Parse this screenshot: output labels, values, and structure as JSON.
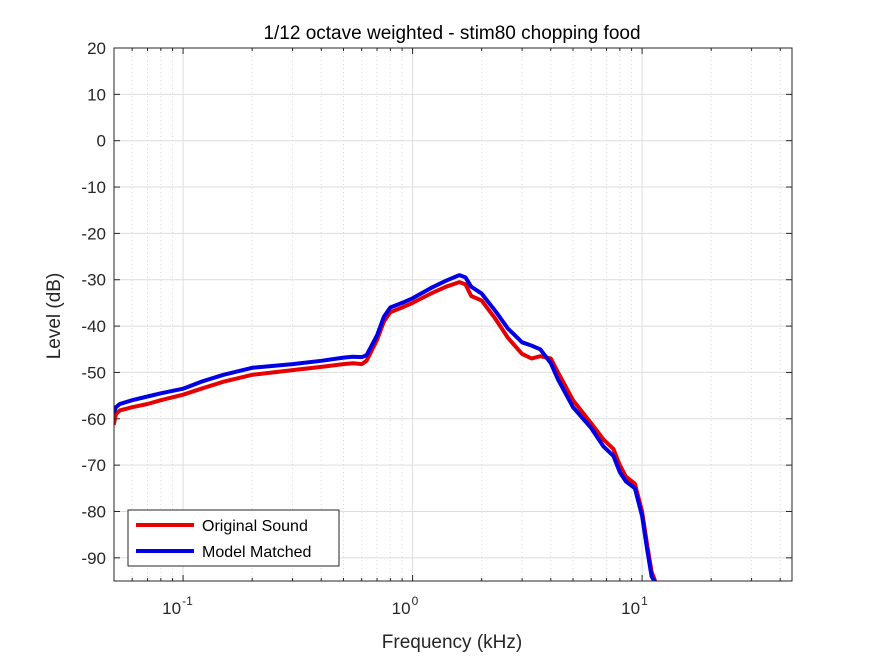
{
  "chart_data": {
    "type": "line",
    "title": "1/12 octave weighted - stim80 chopping food",
    "xlabel": "Frequency (kHz)",
    "ylabel": "Level (dB)",
    "xscale": "log",
    "xlim": [
      0.05,
      45
    ],
    "ylim": [
      -95,
      20
    ],
    "grid": true,
    "legend_location": "bottom-left",
    "y_ticks": [
      20,
      10,
      0,
      -10,
      -20,
      -30,
      -40,
      -50,
      -60,
      -70,
      -80,
      -90
    ],
    "x_ticks": [
      {
        "value": 0.1,
        "base": "10",
        "exponent": "-1"
      },
      {
        "value": 1,
        "base": "10",
        "exponent": "0"
      },
      {
        "value": 10,
        "base": "10",
        "exponent": "1"
      }
    ],
    "series": [
      {
        "name": "Original Sound",
        "color": "#e60000",
        "points": [
          [
            0.05,
            -61
          ],
          [
            0.051,
            -59
          ],
          [
            0.053,
            -58.2
          ],
          [
            0.06,
            -57.5
          ],
          [
            0.07,
            -56.8
          ],
          [
            0.08,
            -56
          ],
          [
            0.1,
            -54.8
          ],
          [
            0.12,
            -53.5
          ],
          [
            0.15,
            -52
          ],
          [
            0.2,
            -50.5
          ],
          [
            0.3,
            -49.5
          ],
          [
            0.4,
            -48.8
          ],
          [
            0.5,
            -48.2
          ],
          [
            0.55,
            -48
          ],
          [
            0.6,
            -48.2
          ],
          [
            0.63,
            -47.5
          ],
          [
            0.7,
            -43
          ],
          [
            0.75,
            -39
          ],
          [
            0.8,
            -37
          ],
          [
            0.9,
            -36
          ],
          [
            1.0,
            -35
          ],
          [
            1.2,
            -33
          ],
          [
            1.4,
            -31.5
          ],
          [
            1.6,
            -30.5
          ],
          [
            1.7,
            -31
          ],
          [
            1.8,
            -33.5
          ],
          [
            2.0,
            -34.5
          ],
          [
            2.3,
            -38.5
          ],
          [
            2.6,
            -42.5
          ],
          [
            3.0,
            -46
          ],
          [
            3.3,
            -47
          ],
          [
            3.6,
            -46.5
          ],
          [
            4.0,
            -47
          ],
          [
            4.3,
            -50
          ],
          [
            5.0,
            -56
          ],
          [
            6.0,
            -61
          ],
          [
            6.8,
            -64.5
          ],
          [
            7.5,
            -66.5
          ],
          [
            8.0,
            -70
          ],
          [
            8.5,
            -72.5
          ],
          [
            9.3,
            -74
          ],
          [
            10.0,
            -80
          ],
          [
            10.5,
            -87
          ],
          [
            11.0,
            -93
          ],
          [
            11.4,
            -95
          ]
        ]
      },
      {
        "name": "Model Matched",
        "color": "#0000e6",
        "points": [
          [
            0.05,
            -58.5
          ],
          [
            0.051,
            -57.5
          ],
          [
            0.053,
            -56.8
          ],
          [
            0.06,
            -56
          ],
          [
            0.07,
            -55.2
          ],
          [
            0.08,
            -54.5
          ],
          [
            0.1,
            -53.5
          ],
          [
            0.12,
            -52
          ],
          [
            0.15,
            -50.5
          ],
          [
            0.2,
            -49
          ],
          [
            0.3,
            -48.2
          ],
          [
            0.4,
            -47.5
          ],
          [
            0.5,
            -46.8
          ],
          [
            0.55,
            -46.6
          ],
          [
            0.6,
            -46.7
          ],
          [
            0.63,
            -46.3
          ],
          [
            0.7,
            -42
          ],
          [
            0.75,
            -38
          ],
          [
            0.8,
            -36
          ],
          [
            0.9,
            -35
          ],
          [
            1.0,
            -34
          ],
          [
            1.2,
            -31.8
          ],
          [
            1.4,
            -30.2
          ],
          [
            1.6,
            -29
          ],
          [
            1.7,
            -29.5
          ],
          [
            1.8,
            -31.5
          ],
          [
            2.0,
            -33
          ],
          [
            2.3,
            -36.8
          ],
          [
            2.6,
            -40.5
          ],
          [
            3.0,
            -43.5
          ],
          [
            3.3,
            -44.2
          ],
          [
            3.6,
            -45
          ],
          [
            4.0,
            -48
          ],
          [
            4.3,
            -51.5
          ],
          [
            5.0,
            -57.5
          ],
          [
            6.0,
            -62
          ],
          [
            6.8,
            -66
          ],
          [
            7.5,
            -68
          ],
          [
            8.0,
            -71.5
          ],
          [
            8.5,
            -73.5
          ],
          [
            9.3,
            -75
          ],
          [
            10.0,
            -81
          ],
          [
            10.5,
            -88
          ],
          [
            11.0,
            -94
          ],
          [
            11.3,
            -95
          ]
        ]
      }
    ]
  }
}
